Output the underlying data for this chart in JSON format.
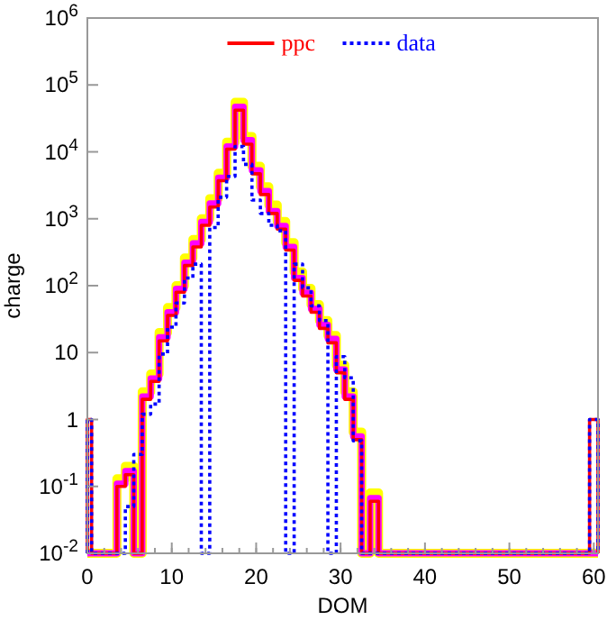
{
  "chart_data": {
    "type": "histogram",
    "xlabel": "DOM",
    "ylabel": "charge",
    "log": "y",
    "legend": "top",
    "grid": false,
    "bins": [
      0,
      0.5,
      1.5,
      2.5,
      3.5,
      4.5,
      5.5,
      6.5,
      7.5,
      8.5,
      9.5,
      10.5,
      11.5,
      12.5,
      13.5,
      14.5,
      15.5,
      16.5,
      17.5,
      18.5,
      19.5,
      20.5,
      21.5,
      22.5,
      23.5,
      24.5,
      25.5,
      26.5,
      27.5,
      28.5,
      29.5,
      30.5,
      31.5,
      32.5,
      33.5,
      34.5,
      35.5,
      36.5,
      37.5,
      38.5,
      39.5,
      40.5,
      41.5,
      42.5,
      43.5,
      44.5,
      45.5,
      46.5,
      47.5,
      48.5,
      49.5,
      50.5,
      51.5,
      52.5,
      53.5,
      54.5,
      55.5,
      56.5,
      57.5,
      58.5,
      59.5,
      60.5
    ],
    "xlim": [
      0,
      60.5
    ],
    "xticks": [
      0,
      10,
      20,
      30,
      40,
      50,
      60
    ],
    "ylim": [
      0.01,
      1000000
    ],
    "yticks": [
      {
        "value": 0.01,
        "label": "10$^{-2}$"
      },
      {
        "value": 0.1,
        "label": "10$^{-1}$"
      },
      1,
      10,
      {
        "value": 100,
        "label": "10$^{2}$"
      },
      {
        "value": 1000,
        "label": "10$^{3}$"
      },
      {
        "value": 10000,
        "label": "10$^{4}$"
      },
      {
        "value": 100000,
        "label": "10$^{5}$"
      },
      {
        "value": 1000000,
        "label": "10$^{6}$"
      }
    ],
    "series": [
      {
        "color": "#ffff00",
        "values": [
          null,
          null,
          null,
          null,
          0.13,
          0.2,
          null,
          2.6,
          4.8,
          20,
          47,
          100,
          260,
          490,
          1000,
          2000,
          4800,
          14000,
          55000,
          17000,
          6100,
          3000,
          1600,
          910,
          440,
          160,
          91,
          52,
          30,
          18,
          6.5,
          2.6,
          0.65,
          null,
          0.08,
          null,
          null,
          null,
          null,
          null,
          null,
          null,
          null,
          null,
          null,
          null,
          null,
          null,
          null,
          null,
          null,
          null,
          null,
          null,
          null,
          null,
          null,
          null,
          null,
          null,
          null
        ]
      },
      {
        "color": "#ff00ff",
        "values": [
          null,
          null,
          null,
          null,
          0.11,
          0.17,
          null,
          2.2,
          4.1,
          17,
          40,
          90,
          220,
          430,
          900,
          1700,
          4100,
          12000,
          47000,
          15000,
          5300,
          2600,
          1300,
          780,
          380,
          130,
          78,
          45,
          26,
          16,
          5.6,
          2.2,
          0.56,
          null,
          0.067,
          null,
          null,
          null,
          null,
          null,
          null,
          null,
          null,
          null,
          null,
          null,
          null,
          null,
          null,
          null,
          null,
          null,
          null,
          null,
          null,
          null,
          null,
          null,
          null,
          null,
          null
        ]
      },
      {
        "name": "ppc",
        "color": "#ff0000",
        "line_style": "solid",
        "values": [
          1,
          null,
          null,
          null,
          0.1,
          0.15,
          null,
          2,
          3.7,
          15,
          36,
          80,
          200,
          380,
          800,
          1500,
          3700,
          11000,
          42000,
          13000,
          4700,
          2300,
          1200,
          700,
          340,
          120,
          70,
          40,
          23,
          14,
          5,
          2,
          0.5,
          null,
          0.06,
          null,
          null,
          null,
          null,
          null,
          null,
          null,
          null,
          null,
          null,
          null,
          null,
          null,
          null,
          null,
          null,
          null,
          null,
          null,
          null,
          null,
          null,
          null,
          null,
          null,
          1
        ]
      },
      {
        "name": "data",
        "color": "#0000ff",
        "line_style": "dotted",
        "values": [
          1,
          null,
          null,
          null,
          null,
          0.05,
          0.3,
          1.2,
          1.7,
          9.5,
          24,
          55,
          130,
          210,
          null,
          740,
          2100,
          4300,
          12000,
          6500,
          1900,
          1200,
          800,
          660,
          null,
          210,
          93,
          50,
          30,
          null,
          8.7,
          4.2,
          0.48,
          null,
          null,
          null,
          null,
          null,
          null,
          null,
          null,
          null,
          null,
          null,
          null,
          null,
          null,
          null,
          null,
          null,
          null,
          null,
          null,
          null,
          null,
          null,
          null,
          null,
          null,
          null,
          1
        ]
      }
    ]
  }
}
